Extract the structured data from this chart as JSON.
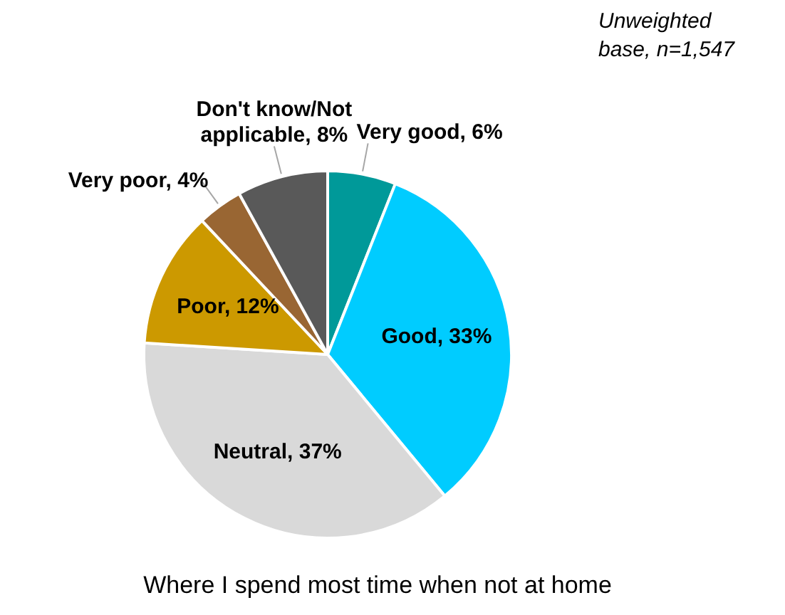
{
  "chart_data": {
    "type": "pie",
    "title": "Where I spend most time when not at home",
    "categories": [
      "Very good",
      "Good",
      "Neutral",
      "Poor",
      "Very poor",
      "Don't know/Not applicable"
    ],
    "values": [
      6,
      33,
      37,
      12,
      4,
      8
    ],
    "value_labels": [
      "6%",
      "33%",
      "37%",
      "12%",
      "4%",
      "8%"
    ],
    "colors": [
      "#009999",
      "#00ccff",
      "#d9d9d9",
      "#cc9900",
      "#996633",
      "#595959"
    ],
    "annotations": [
      "Unweighted base, n=1,547"
    ],
    "legend": false
  }
}
